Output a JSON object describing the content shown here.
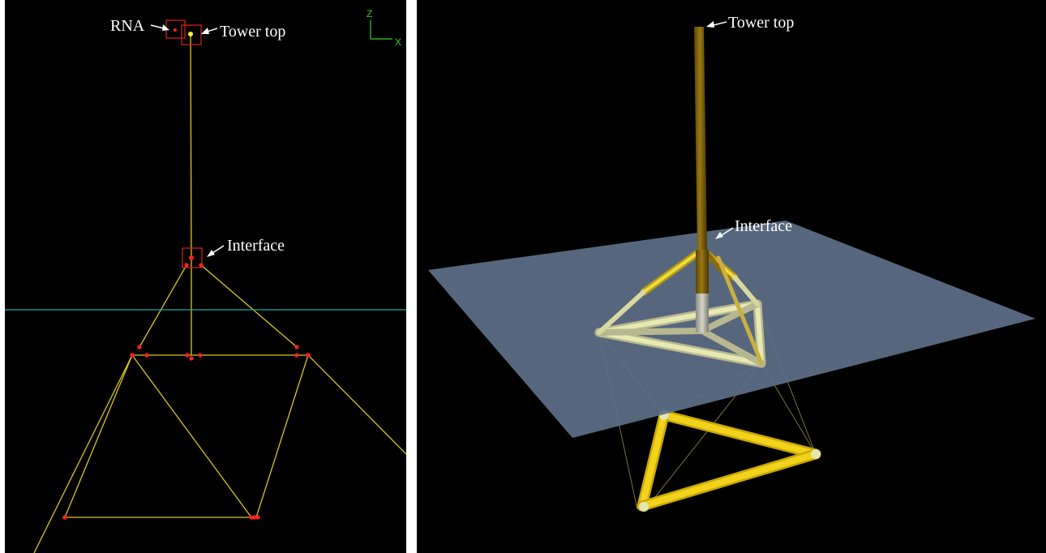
{
  "left_view": {
    "labels": {
      "rna": "RNA",
      "tower_top": "Tower top",
      "interface": "Interface"
    },
    "axis": {
      "vertical": "Z",
      "horizontal": "X"
    }
  },
  "right_view": {
    "labels": {
      "tower_top": "Tower top",
      "interface": "Interface"
    }
  },
  "colors": {
    "background": "#000000",
    "structure_line": "#d8c81a",
    "node_marker": "#ff2020",
    "waterline": "#2aa6a6",
    "axis": "#30d030",
    "sea_plane": "#5d6f87",
    "tower": "#8a6a0a",
    "brace": "#f0dc40",
    "upper_frame": "#e6e6a8",
    "lower_frame": "#f2d21a"
  }
}
